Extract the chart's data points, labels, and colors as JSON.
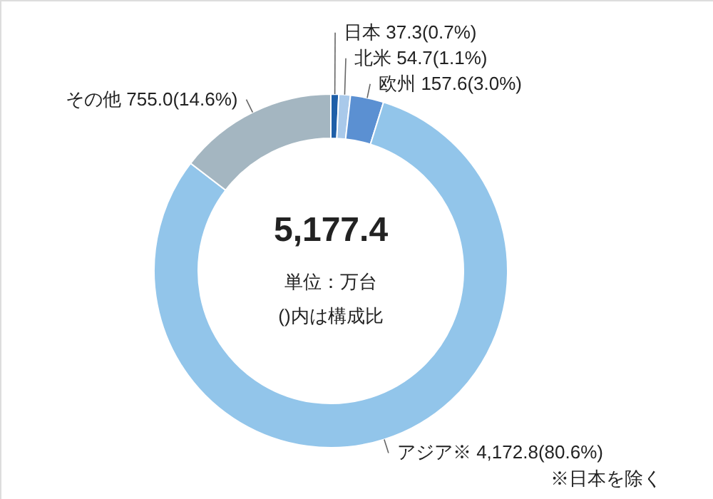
{
  "chart_data": {
    "type": "donut",
    "title": "5,177.4",
    "categories": [
      "日本",
      "北米",
      "欧州",
      "アジア※",
      "その他"
    ],
    "values": [
      37.3,
      54.7,
      157.6,
      4172.8,
      755.0
    ],
    "value_labels": [
      "37.3(0.7%)",
      "54.7(1.1%)",
      "157.6(3.0%)",
      "4,172.8(80.6%)",
      "755.0(14.6%)"
    ],
    "colors": [
      "#1f5fa8",
      "#a9c9ea",
      "#5b90d2",
      "#92c5ea",
      "#a4b6c1"
    ],
    "annotations": [
      "単位：万台",
      "()内は構成比",
      "※日本を除く"
    ]
  }
}
